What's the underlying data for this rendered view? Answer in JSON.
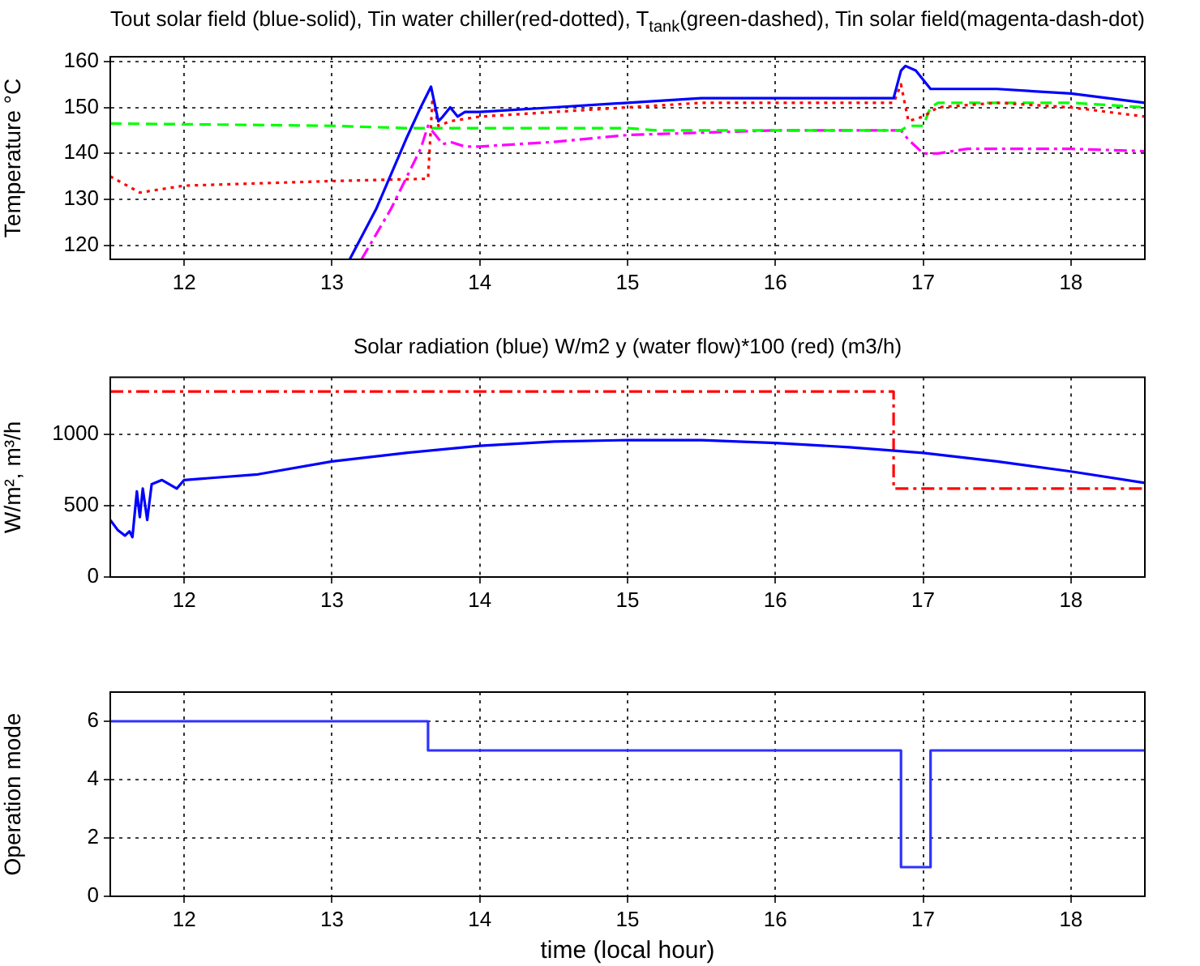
{
  "chart_data": [
    {
      "type": "line",
      "title": "Tout solar field (blue-solid), Tin water chiller(red-dotted), T$_{tank}$(green-dashed), Tin solar field(magenta-dash-dot)",
      "ylabel": "Temperature °C",
      "xlim": [
        11.5,
        18.5
      ],
      "xticks": [
        12,
        13,
        14,
        15,
        16,
        17,
        18
      ],
      "ylim": [
        117,
        161
      ],
      "yticks": [
        120,
        130,
        140,
        150,
        160
      ],
      "grid": true,
      "legend": false,
      "marker": "none",
      "series": [
        {
          "color": "#0000ff",
          "line_style": "solid",
          "x": [
            13.12,
            13.3,
            13.5,
            13.6,
            13.67,
            13.72,
            13.75,
            13.8,
            13.85,
            13.9,
            14,
            14.5,
            15,
            15.5,
            16,
            16.5,
            16.8,
            16.85,
            16.88,
            16.95,
            17.05,
            17.2,
            17.5,
            18,
            18.5
          ],
          "values": [
            117,
            128,
            143,
            150,
            154.5,
            147,
            148,
            150,
            148,
            149,
            149,
            150,
            151,
            152,
            152,
            152,
            152,
            158,
            159,
            158,
            154,
            154,
            154,
            153,
            151
          ]
        },
        {
          "color": "#ff0000",
          "line_style": "dotted",
          "x": [
            11.5,
            11.7,
            12,
            12.5,
            13,
            13.65,
            13.68,
            13.72,
            13.8,
            14,
            14.5,
            15,
            15.5,
            16,
            16.8,
            16.85,
            16.9,
            17,
            17.1,
            17.5,
            18,
            18.5
          ],
          "values": [
            135,
            131.5,
            133,
            133.5,
            134,
            134.5,
            152,
            146,
            147,
            148,
            149,
            150,
            151,
            151,
            151,
            155,
            147,
            148,
            150,
            151,
            150,
            148
          ]
        },
        {
          "color": "#00ff00",
          "line_style": "dashed",
          "x": [
            11.5,
            13,
            13.5,
            14,
            15,
            15.2,
            16,
            16.85,
            16.9,
            17,
            17.05,
            17.1,
            18,
            18.5
          ],
          "values": [
            146.5,
            146,
            145.5,
            145.5,
            145.5,
            145,
            145,
            145,
            146,
            146,
            150,
            151,
            151,
            150
          ]
        },
        {
          "color": "#ff00ff",
          "line_style": "dashdot",
          "x": [
            13.2,
            13.4,
            13.6,
            13.65,
            13.7,
            13.75,
            13.8,
            13.9,
            14,
            14.5,
            15,
            15.5,
            16,
            16.85,
            16.9,
            17,
            17.1,
            17.3,
            18,
            18.5
          ],
          "values": [
            117,
            128,
            141,
            146,
            144,
            142,
            142.5,
            141.5,
            141.5,
            142.5,
            144,
            144.5,
            145,
            145,
            143,
            140,
            140,
            141,
            141,
            140.5
          ]
        }
      ]
    },
    {
      "type": "line",
      "title": "Solar radiation (blue) W/m2 y (water flow)*100 (red) (m3/h)",
      "ylabel": "W/m², m³/h",
      "xlim": [
        11.5,
        18.5
      ],
      "xticks": [
        12,
        13,
        14,
        15,
        16,
        17,
        18
      ],
      "ylim": [
        0,
        1400
      ],
      "yticks": [
        0,
        500,
        1000
      ],
      "grid": true,
      "legend": false,
      "marker": "none",
      "series": [
        {
          "color": "#0000ff",
          "line_style": "solid",
          "x": [
            11.5,
            11.55,
            11.6,
            11.63,
            11.65,
            11.68,
            11.7,
            11.72,
            11.75,
            11.78,
            11.85,
            11.95,
            12,
            12.5,
            13,
            13.5,
            14,
            14.5,
            15,
            15.5,
            16,
            16.5,
            17,
            17.5,
            18,
            18.5
          ],
          "values": [
            400,
            330,
            290,
            320,
            280,
            600,
            420,
            620,
            400,
            650,
            680,
            620,
            680,
            720,
            810,
            870,
            920,
            950,
            960,
            960,
            940,
            910,
            870,
            810,
            740,
            660
          ]
        },
        {
          "type": "step",
          "color": "#ff0000",
          "line_style": "dashdot",
          "x": [
            11.5,
            16.8,
            18.5
          ],
          "values": [
            1300,
            620,
            620
          ]
        }
      ]
    },
    {
      "type": "step",
      "xlabel": "time (local hour)",
      "ylabel": "Operation mode",
      "xlim": [
        11.5,
        18.5
      ],
      "xticks": [
        12,
        13,
        14,
        15,
        16,
        17,
        18
      ],
      "ylim": [
        0,
        7
      ],
      "yticks": [
        0,
        2,
        4,
        6
      ],
      "grid": true,
      "legend": false,
      "marker": "none",
      "series": [
        {
          "color": "#3030ff",
          "line_style": "solid",
          "x": [
            11.5,
            13.65,
            16.85,
            17.05,
            18.5
          ],
          "values": [
            6,
            5,
            1,
            5,
            5
          ]
        }
      ]
    }
  ]
}
